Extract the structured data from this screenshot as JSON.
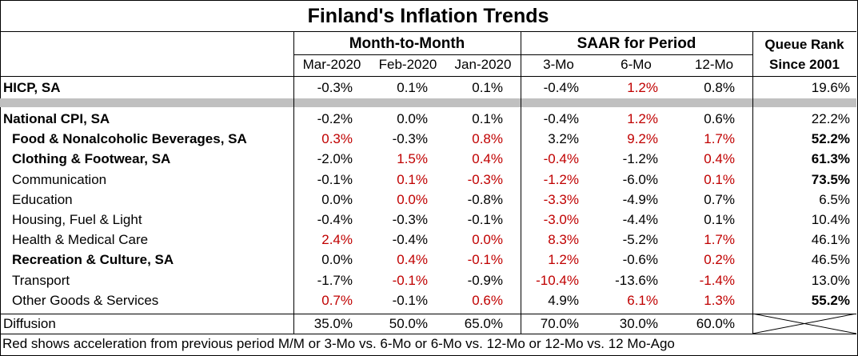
{
  "title": "Finland's Inflation Trends",
  "header": {
    "group_mtm": "Month-to-Month",
    "group_saar": "SAAR for Period",
    "rank_line1": "Queue Rank",
    "rank_line2": "Since 2001",
    "columns": [
      "Mar-2020",
      "Feb-2020",
      "Jan-2020",
      "3-Mo",
      "6-Mo",
      "12-Mo"
    ]
  },
  "hicp": {
    "label": "HICP, SA",
    "values": [
      "-0.3%",
      "0.1%",
      "0.1%",
      "-0.4%",
      "1.2%",
      "0.8%"
    ],
    "red": [
      false,
      false,
      false,
      false,
      true,
      false
    ],
    "rank": "19.6%",
    "rank_bold": false
  },
  "rows": [
    {
      "label": "National CPI, SA",
      "bold": true,
      "indent": false,
      "values": [
        "-0.2%",
        "0.0%",
        "0.1%",
        "-0.4%",
        "1.2%",
        "0.6%"
      ],
      "red": [
        false,
        false,
        false,
        false,
        true,
        false
      ],
      "rank": "22.2%",
      "rank_bold": false
    },
    {
      "label": "Food & Nonalcoholic Beverages, SA",
      "bold": true,
      "indent": true,
      "values": [
        "0.3%",
        "-0.3%",
        "0.8%",
        "3.2%",
        "9.2%",
        "1.7%"
      ],
      "red": [
        true,
        false,
        true,
        false,
        true,
        true
      ],
      "rank": "52.2%",
      "rank_bold": true
    },
    {
      "label": "Clothing & Footwear, SA",
      "bold": true,
      "indent": true,
      "values": [
        "-2.0%",
        "1.5%",
        "0.4%",
        "-0.4%",
        "-1.2%",
        "0.4%"
      ],
      "red": [
        false,
        true,
        true,
        true,
        false,
        true
      ],
      "rank": "61.3%",
      "rank_bold": true
    },
    {
      "label": "Communication",
      "bold": false,
      "indent": true,
      "values": [
        "-0.1%",
        "0.1%",
        "-0.3%",
        "-1.2%",
        "-6.0%",
        "0.1%"
      ],
      "red": [
        false,
        true,
        true,
        true,
        false,
        true
      ],
      "rank": "73.5%",
      "rank_bold": true
    },
    {
      "label": "Education",
      "bold": false,
      "indent": true,
      "values": [
        "0.0%",
        "0.0%",
        "-0.8%",
        "-3.3%",
        "-4.9%",
        "0.7%"
      ],
      "red": [
        false,
        true,
        false,
        true,
        false,
        false
      ],
      "rank": "6.5%",
      "rank_bold": false
    },
    {
      "label": "Housing, Fuel & Light",
      "bold": false,
      "indent": true,
      "values": [
        "-0.4%",
        "-0.3%",
        "-0.1%",
        "-3.0%",
        "-4.4%",
        "0.1%"
      ],
      "red": [
        false,
        false,
        false,
        true,
        false,
        false
      ],
      "rank": "10.4%",
      "rank_bold": false
    },
    {
      "label": "Health & Medical Care",
      "bold": false,
      "indent": true,
      "values": [
        "2.4%",
        "-0.4%",
        "0.0%",
        "8.3%",
        "-5.2%",
        "1.7%"
      ],
      "red": [
        true,
        false,
        true,
        true,
        false,
        true
      ],
      "rank": "46.1%",
      "rank_bold": false
    },
    {
      "label": "Recreation & Culture, SA",
      "bold": true,
      "indent": true,
      "values": [
        "0.0%",
        "0.4%",
        "-0.1%",
        "1.2%",
        "-0.6%",
        "0.2%"
      ],
      "red": [
        false,
        true,
        true,
        true,
        false,
        true
      ],
      "rank": "46.5%",
      "rank_bold": false
    },
    {
      "label": "Transport",
      "bold": false,
      "indent": true,
      "values": [
        "-1.7%",
        "-0.1%",
        "-0.9%",
        "-10.4%",
        "-13.6%",
        "-1.4%"
      ],
      "red": [
        false,
        true,
        false,
        true,
        false,
        true
      ],
      "rank": "13.0%",
      "rank_bold": false
    },
    {
      "label": "Other Goods & Services",
      "bold": false,
      "indent": true,
      "values": [
        "0.7%",
        "-0.1%",
        "0.6%",
        "4.9%",
        "6.1%",
        "1.3%"
      ],
      "red": [
        true,
        false,
        true,
        false,
        true,
        true
      ],
      "rank": "55.2%",
      "rank_bold": true
    }
  ],
  "diffusion": {
    "label": "Diffusion",
    "values": [
      "35.0%",
      "50.0%",
      "65.0%",
      "70.0%",
      "30.0%",
      "60.0%"
    ]
  },
  "footnote": "Red shows acceleration from previous period M/M or 3-Mo vs. 6-Mo or 6-Mo vs. 12-Mo or 12-Mo vs. 12 Mo-Ago",
  "colors": {
    "red": "#c00000",
    "band": "#c0c0c0"
  }
}
